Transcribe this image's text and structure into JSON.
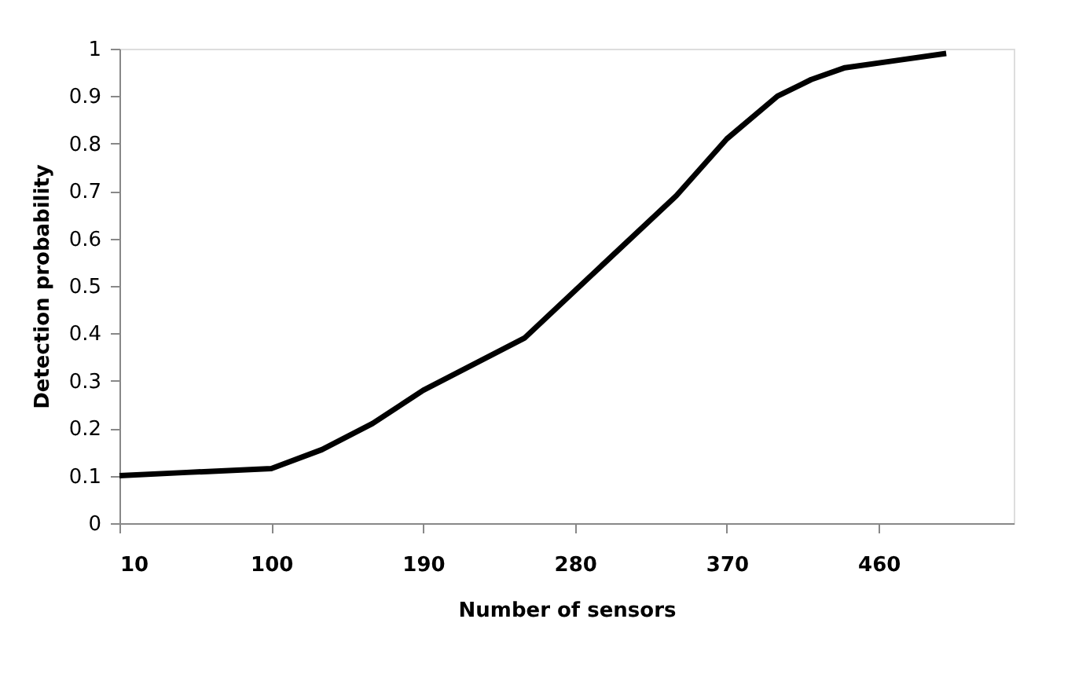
{
  "chart_data": {
    "type": "line",
    "xlabel": "Number of sensors",
    "ylabel": "Detection probability",
    "x": [
      10,
      50,
      100,
      130,
      160,
      190,
      220,
      250,
      280,
      310,
      340,
      370,
      400,
      420,
      440,
      470,
      500
    ],
    "series": [
      {
        "color": "#000000",
        "values": [
          0.1,
          0.107,
          0.115,
          0.155,
          0.21,
          0.28,
          0.335,
          0.39,
          0.49,
          0.59,
          0.69,
          0.81,
          0.9,
          0.935,
          0.96,
          0.975,
          0.99
        ]
      }
    ],
    "xlim": [
      10,
      540
    ],
    "xticks": [
      10,
      100,
      190,
      280,
      370,
      460
    ],
    "ylim": [
      0,
      1
    ],
    "yticks": [
      0,
      0.1,
      0.2,
      0.3,
      0.4,
      0.5,
      0.6,
      0.7,
      0.8,
      0.9,
      1
    ],
    "grid": false,
    "legend": false,
    "marker": "none",
    "line_style": "solid"
  }
}
